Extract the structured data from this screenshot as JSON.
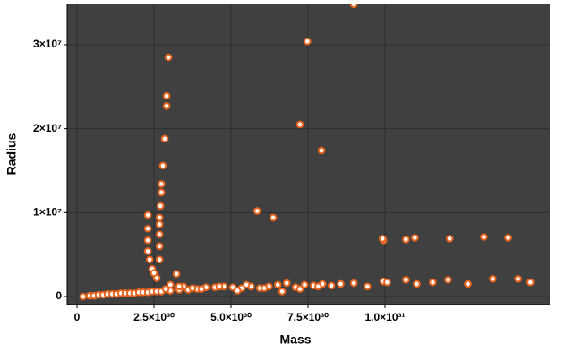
{
  "chart_data": {
    "type": "scatter",
    "xlabel": "Mass",
    "ylabel": "Radius",
    "color": "#e8641e",
    "grid": true,
    "xlim": [
      -3.2e+29,
      1.535e+31
    ],
    "ylim": [
      -960000.0,
      34800000.0
    ],
    "xticks": [
      0,
      {
        "value": 2.5e+30,
        "label": "2.5×10³⁰"
      },
      {
        "value": 5e+30,
        "label": "5.0×10³⁰"
      },
      {
        "value": 7.5e+30,
        "label": "7.5×10³⁰"
      },
      {
        "value": 1e+31,
        "label": "1.0×10³¹"
      }
    ],
    "yticks": [
      0,
      {
        "value": 10000000.0,
        "label": "1×10⁷"
      },
      {
        "value": 20000000.0,
        "label": "2×10⁷"
      },
      {
        "value": 30000000.0,
        "label": "3×10⁷"
      }
    ],
    "x": [
      2e+29,
      4.1e+29,
      5.5e+29,
      7e+29,
      8.5e+29,
      9.9e+29,
      1.14e+30,
      1.28e+30,
      1.43e+30,
      1.57e+30,
      1.72e+30,
      1.86e+30,
      2.01e+30,
      2.15e+30,
      2.3e+30,
      2.44e+30,
      2.59e+30,
      2.74e+30,
      3.03e+30,
      3.32e+30,
      3.61e+30,
      3.9e+30,
      4.19e+30,
      4.48e+30,
      4.77e+30,
      5.06e+30,
      5.35e+30,
      5.65e+30,
      5.94e+30,
      6.23e+30,
      6.52e+30,
      6.81e+30,
      7.1e+30,
      7.39e+30,
      7.68e+30,
      7.97e+30,
      8.26e+30,
      8.56e+30,
      8.99e+30,
      9.43e+30,
      9.95e+30,
      1.007e+31,
      1.068e+31,
      1.103e+31,
      1.155e+31,
      1.205e+31,
      1.269e+31,
      1.35e+31,
      1.432e+31,
      1.472e+31,
      2.3e+30,
      2.3e+30,
      2.3e+30,
      2.3e+30,
      2.36e+30,
      2.44e+30,
      2.5e+30,
      2.59e+30,
      2.68e+30,
      2.68e+30,
      2.68e+30,
      2.68e+30,
      2.68e+30,
      2.71e+30,
      2.74e+30,
      2.74e+30,
      2.79e+30,
      2.85e+30,
      2.91e+30,
      2.91e+30,
      2.97e+30,
      3.23e+30,
      8.99e+30,
      7.48e+30,
      7.24e+30,
      7.94e+30,
      5.85e+30,
      6.37e+30,
      9.95e+30,
      9.92e+30,
      1.068e+31,
      1.097e+31,
      1.21e+31,
      1.321e+31,
      1.4e+31,
      3.46e+30,
      3.75e+30,
      2.88e+30,
      3.03e+30,
      3.32e+30,
      4.04e+30,
      4.62e+30,
      5.21e+30,
      5.5e+30,
      6.08e+30,
      6.66e+30,
      7.24e+30,
      7.83e+30
    ],
    "values": [
      0,
      100000.0,
      100000.0,
      200000.0,
      200000.0,
      300000.0,
      300000.0,
      300000.0,
      400000.0,
      400000.0,
      400000.0,
      400000.0,
      500000.0,
      500000.0,
      500000.0,
      600000.0,
      600000.0,
      600000.0,
      700000.0,
      800000.0,
      800000.0,
      900000.0,
      1100000.0,
      1100000.0,
      1200000.0,
      1100000.0,
      1000000.0,
      1200000.0,
      1000000.0,
      1200000.0,
      1400000.0,
      1600000.0,
      1100000.0,
      1400000.0,
      1300000.0,
      1500000.0,
      1300000.0,
      1500000.0,
      1600000.0,
      1200000.0,
      1800000.0,
      1700000.0,
      2000000.0,
      1500000.0,
      1700000.0,
      2000000.0,
      1500000.0,
      2100000.0,
      2100000.0,
      1700000.0,
      9700000.0,
      8100000.0,
      6700000.0,
      5400000.0,
      4400000.0,
      3300000.0,
      2800000.0,
      2200000.0,
      4400000.0,
      6000000.0,
      7400000.0,
      8600000.0,
      9400000.0,
      10800000.0,
      12400000.0,
      13400000.0,
      15600000.0,
      18800000.0,
      22700000.0,
      23900000.0,
      28500000.0,
      2700000.0,
      34800000.0,
      30400000.0,
      20500000.0,
      17400000.0,
      10200000.0,
      9400000.0,
      6700000.0,
      6900000.0,
      6800000.0,
      7000000.0,
      6900000.0,
      7100000.0,
      7000000.0,
      1200000.0,
      1000000.0,
      900000.0,
      1400000.0,
      1200000.0,
      900000.0,
      1200000.0,
      700000.0,
      1400000.0,
      1000000.0,
      600000.0,
      900000.0,
      1200000.0
    ]
  }
}
